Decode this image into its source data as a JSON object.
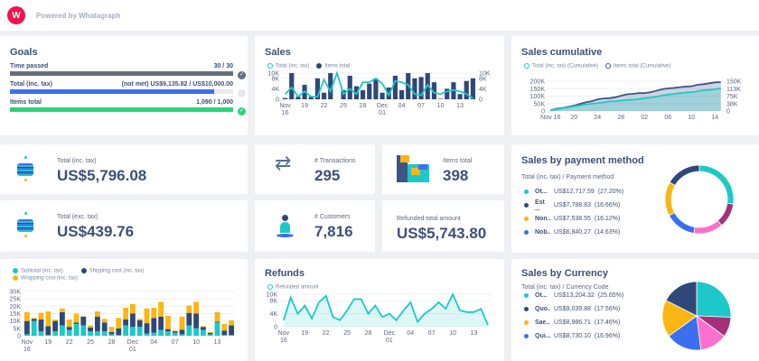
{
  "header": {
    "logo_letter": "W",
    "powered_by": "Powered by Whatagraph"
  },
  "goals": {
    "title": "Goals",
    "items": [
      {
        "label": "Time passed",
        "value": "30 / 30",
        "progress": 1.0,
        "color": "#656d7e",
        "status": "met"
      },
      {
        "label": "Total (inc. tax)",
        "value": "(not met) US$9,135.82 / US$10,000.00",
        "progress": 0.9136,
        "color": "#3b6ff0",
        "status": "not met"
      },
      {
        "label": "Items total",
        "value": "1,090 / 1,000",
        "progress": 1.0,
        "color": "#2ed47a",
        "status": "met"
      }
    ]
  },
  "sales": {
    "title": "Sales",
    "legend": [
      "Total (inc. tax)",
      "Items total"
    ]
  },
  "cumulative": {
    "title": "Sales cumulative",
    "legend": [
      "Total (inc. tax) (Cumulative)",
      "Items total (Cumulative)"
    ]
  },
  "kpis": {
    "total_inc": {
      "label": "Total (inc. tax)",
      "value": "US$5,796.08"
    },
    "total_exc": {
      "label": "Total (exc. tax)",
      "value": "US$439.76"
    },
    "transactions": {
      "label": "# Transactions",
      "value": "295"
    },
    "customers": {
      "label": "# Customers",
      "value": "7,816"
    },
    "items": {
      "label": "Items total",
      "value": "398"
    },
    "refunded": {
      "label": "Refunded total amount",
      "value": "US$5,743.80"
    }
  },
  "payment": {
    "title": "Sales by payment method",
    "subtitle": "Total (inc. tax) / Payment method",
    "items": [
      {
        "name": "Ot...",
        "value": "US$12,717.59",
        "pct": "(27.20%)",
        "color": "#1ec8c8"
      },
      {
        "name": "Est ...",
        "value": "US$7,788.83",
        "pct": "(16.66%)",
        "color": "#2f4878"
      },
      {
        "name": "Non...",
        "value": "US$7,538.55",
        "pct": "(16.12%)",
        "color": "#fbb614"
      },
      {
        "name": "Nob...",
        "value": "US$6,840.27",
        "pct": "(14.63%)",
        "color": "#3b6ff0"
      }
    ]
  },
  "currency": {
    "title": "Sales by Currency",
    "subtitle": "Total (inc. tax) / Currency Code",
    "items": [
      {
        "name": "Ot...",
        "value": "US$13,204.32",
        "pct": "(25.65%)",
        "color": "#1ec8c8"
      },
      {
        "name": "Quo...",
        "value": "US$9,039.88",
        "pct": "(17.56%)",
        "color": "#2f4878"
      },
      {
        "name": "Sae...",
        "value": "US$8,986.71",
        "pct": "(17.46%)",
        "color": "#fbb614"
      },
      {
        "name": "Qui...",
        "value": "US$8,730.10",
        "pct": "(16.96%)",
        "color": "#3b6ff0"
      }
    ]
  },
  "costs": {
    "legend": [
      "Subtotal (inc. tax)",
      "Shipping cost (inc. tax)",
      "Wrapping cost (inc. tax)"
    ]
  },
  "refunds": {
    "title": "Refunds",
    "legend": [
      "Refunded amount"
    ]
  },
  "chart_data": [
    {
      "type": "bar",
      "title": "Sales",
      "x_ticks": [
        "Nov 16",
        "19",
        "22",
        "25",
        "28",
        "Dec 01",
        "04",
        "07",
        "10",
        "13"
      ],
      "y_ticks": [
        "0",
        "4K",
        "8K",
        "10K"
      ],
      "ylim": [
        0,
        10000
      ],
      "series": [
        {
          "name": "Items total",
          "type": "bar",
          "color": "#2f4878",
          "values": [
            500,
            10000,
            1000,
            5500,
            1000,
            8000,
            2500,
            10000,
            0,
            3500,
            9000,
            5000,
            3500,
            6000,
            7500,
            2500,
            4500,
            9000,
            3500,
            10000,
            8000,
            8500,
            10000,
            6500,
            200,
            4000,
            6500,
            2000,
            7000,
            8000
          ]
        },
        {
          "name": "Total (inc. tax)",
          "type": "line",
          "color": "#1ec8c8",
          "values": [
            2000,
            4500,
            1000,
            3000,
            1000,
            1000,
            7500,
            3000,
            10000,
            2000,
            4000,
            2000,
            6500,
            6500,
            8000,
            6000,
            1500,
            7000,
            6500,
            5500,
            2000,
            1500,
            5500,
            2500,
            2000,
            3000,
            3500,
            3000,
            2000,
            300
          ]
        }
      ]
    },
    {
      "type": "area",
      "title": "Sales cumulative",
      "x_ticks": [
        "Nov 16",
        "20",
        "24",
        "28",
        "02",
        "06",
        "10",
        "14"
      ],
      "y_ticks": [
        "0",
        "50K",
        "100K",
        "150K",
        "200K"
      ],
      "y2_ticks": [
        "0",
        "38K",
        "75K",
        "113K",
        "150K"
      ],
      "ylim": [
        0,
        200000
      ],
      "series": [
        {
          "name": "Items total (Cumulative)",
          "color": "#3d5585",
          "values": [
            5000,
            15000,
            20000,
            28000,
            36000,
            48000,
            58000,
            66000,
            78000,
            84000,
            86000,
            92000,
            102000,
            112000,
            115000,
            120000,
            120000,
            126000,
            136000,
            146000,
            152000,
            155000,
            160000,
            164000,
            166000,
            176000,
            180000,
            186000,
            192000,
            194000
          ]
        },
        {
          "name": "Total (inc. tax) (Cumulative)",
          "color": "#1ec8c8",
          "values": [
            5000,
            12000,
            18000,
            25000,
            31000,
            38000,
            44000,
            49000,
            53000,
            58000,
            64000,
            66000,
            70000,
            74000,
            76000,
            80000,
            86000,
            90000,
            96000,
            104000,
            110000,
            114000,
            120000,
            124000,
            126000,
            132000,
            140000,
            142000,
            146000,
            152000
          ]
        }
      ]
    },
    {
      "type": "bar",
      "stacked": true,
      "x_ticks": [
        "Nov 16",
        "19",
        "22",
        "25",
        "28",
        "Dec 01",
        "04",
        "07",
        "10",
        "13"
      ],
      "y_ticks": [
        "0",
        "5K",
        "10K",
        "15K",
        "20K",
        "25K",
        "30K"
      ],
      "ylim": [
        0,
        30000
      ],
      "series": [
        {
          "name": "Subtotal (inc. tax)",
          "color": "#1ec8c8",
          "values": [
            1000,
            10000,
            3000,
            500,
            3000,
            7000,
            4000,
            8000,
            7000,
            3000,
            3000,
            3000,
            1000,
            500,
            7000,
            6000,
            6000,
            1500,
            2000,
            4000,
            3000,
            2000,
            1000,
            7000,
            5000,
            4000,
            1000,
            9000,
            500,
            500
          ]
        },
        {
          "name": "Shipping cost (inc. tax)",
          "color": "#2f4878",
          "values": [
            9000,
            1500,
            8000,
            6000,
            7000,
            9000,
            2000,
            1000,
            6000,
            2500,
            10000,
            6000,
            1500,
            4500,
            4000,
            9000,
            4500,
            7000,
            10000,
            9000,
            1500,
            1000,
            3000,
            8500,
            10000,
            2000,
            1000,
            500,
            3000,
            6500
          ]
        },
        {
          "name": "Wrapping cost (inc. tax)",
          "color": "#fbb614",
          "values": [
            6000,
            500,
            4500,
            10000,
            1000,
            2500,
            5000,
            6000,
            0,
            1500,
            3500,
            2500,
            3500,
            7000,
            8000,
            6500,
            1000,
            10000,
            7000,
            10000,
            9000,
            500,
            9000,
            5000,
            8000,
            500,
            500,
            6500,
            4500,
            3500
          ]
        }
      ]
    },
    {
      "type": "area",
      "title": "Refunds",
      "x_ticks": [
        "Nov 16",
        "19",
        "22",
        "25",
        "28",
        "Dec 01",
        "04",
        "07",
        "10",
        "13"
      ],
      "y_ticks": [
        "0",
        "4K",
        "8K",
        "10K"
      ],
      "ylim": [
        0,
        10000
      ],
      "series": [
        {
          "name": "Refunded amount",
          "color": "#1ec8c8",
          "values": [
            2000,
            9000,
            4000,
            6500,
            2500,
            7500,
            9500,
            3000,
            2000,
            5000,
            8500,
            8500,
            4000,
            6500,
            3000,
            4000,
            2000,
            5000,
            7500,
            1500,
            4000,
            5500,
            7500,
            5500,
            10000,
            5000,
            4500,
            4500,
            5500,
            500
          ]
        }
      ]
    },
    {
      "type": "pie",
      "donut": true,
      "title": "Sales by payment method",
      "slices": [
        {
          "label": "Ot...",
          "value": 27.2,
          "color": "#1ec8c8"
        },
        {
          "label": "other-1",
          "value": 11.5,
          "color": "#a4307a"
        },
        {
          "label": "other-2",
          "value": 13.9,
          "color": "#fb6fcf"
        },
        {
          "label": "Nob...",
          "value": 14.63,
          "color": "#3b6ff0"
        },
        {
          "label": "Non...",
          "value": 16.12,
          "color": "#fbb614"
        },
        {
          "label": "Est ...",
          "value": 16.66,
          "color": "#2f4878"
        }
      ]
    },
    {
      "type": "pie",
      "title": "Sales by Currency",
      "slices": [
        {
          "label": "Ot...",
          "value": 25.65,
          "color": "#1ec8c8"
        },
        {
          "label": "other-1",
          "value": 9.5,
          "color": "#a4307a"
        },
        {
          "label": "other-2",
          "value": 12.9,
          "color": "#fb6fcf"
        },
        {
          "label": "Qui...",
          "value": 16.96,
          "color": "#3b6ff0"
        },
        {
          "label": "Sae...",
          "value": 17.46,
          "color": "#fbb614"
        },
        {
          "label": "Quo...",
          "value": 17.56,
          "color": "#2f4878"
        }
      ]
    }
  ]
}
